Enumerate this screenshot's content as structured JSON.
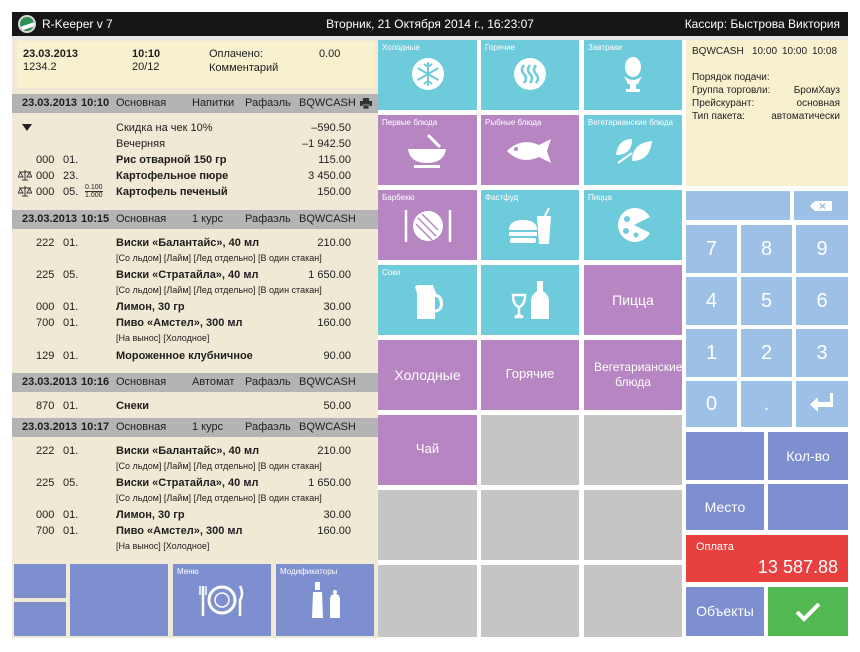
{
  "title_bar": {
    "app_name": "R-Keeper v 7",
    "datetime": "Вторник, 21 Октября 2014 г., 16:23:07",
    "cashier": "Кассир: Быстрова Виктория"
  },
  "order_header": {
    "date": "23.03.2013",
    "time": "10:10",
    "number": "1234.2",
    "table": "20/12",
    "paid_label": "Оплачено:",
    "paid_value": "0.00",
    "comment_label": "Комментарий"
  },
  "groups": [
    {
      "date": "23.03.2013",
      "time": "10:10",
      "type": "Основная",
      "course": "Напитки",
      "waiter": "Рафаэль",
      "station": "BQWCASH",
      "items": [
        {
          "code": "",
          "qty": "",
          "name": "Скидка на чек 10%",
          "price": "–590.50"
        },
        {
          "code": "",
          "qty": "",
          "name": "Вечерняя",
          "price": "–1 942.50"
        },
        {
          "code": "000",
          "qty": "01.",
          "name": "Рис отварной 150 гр",
          "price": "115.00"
        },
        {
          "code": "000",
          "qty": "23.",
          "name": "Картофельное пюре",
          "price": "3 450.00"
        },
        {
          "code": "000",
          "qty": "05.",
          "frac_num": "0.100",
          "frac_den": "1.000",
          "name": "Картофель печеный",
          "price": "150.00"
        }
      ]
    },
    {
      "date": "23.03.2013",
      "time": "10:15",
      "type": "Основная",
      "course": "1 курс",
      "waiter": "Рафаэль",
      "station": "BQWCASH",
      "items": [
        {
          "code": "222",
          "qty": "01.",
          "name": "Виски «Балантайс», 40 мл",
          "price": "210.00",
          "mods": "[Со льдом] [Лайм] [Лед отдельно] [В один стакан]"
        },
        {
          "code": "225",
          "qty": "05.",
          "name": "Виски «Стратайла», 40 мл",
          "price": "1 650.00",
          "mods": "[Со льдом] [Лайм] [Лед отдельно] [В один стакан]"
        },
        {
          "code": "000",
          "qty": "01.",
          "name": "Лимон, 30 гр",
          "price": "30.00"
        },
        {
          "code": "700",
          "qty": "01.",
          "name": "Пиво «Амстел», 300 мл",
          "price": "160.00",
          "mods": "[На вынос] [Холодное]"
        },
        {
          "code": "129",
          "qty": "01.",
          "name": "Мороженное клубничное",
          "price": "90.00"
        }
      ]
    },
    {
      "date": "23.03.2013",
      "time": "10:16",
      "type": "Основная",
      "course": "Автомат",
      "waiter": "Рафаэль",
      "station": "BQWCASH",
      "items": [
        {
          "code": "870",
          "qty": "01.",
          "name": "Снеки",
          "price": "50.00"
        }
      ]
    },
    {
      "date": "23.03.2013",
      "time": "10:17",
      "type": "Основная",
      "course": "1 курс",
      "waiter": "Рафаэль",
      "station": "BQWCASH",
      "items": [
        {
          "code": "222",
          "qty": "01.",
          "name": "Виски «Балантайс», 40 мл",
          "price": "210.00",
          "mods": "[Со льдом] [Лайм] [Лед отдельно] [В один стакан]"
        },
        {
          "code": "225",
          "qty": "05.",
          "name": "Виски «Стратайла», 40 мл",
          "price": "1 650.00",
          "mods": "[Со льдом] [Лайм] [Лед отдельно] [В один стакан]"
        },
        {
          "code": "000",
          "qty": "01.",
          "name": "Лимон, 30 гр",
          "price": "30.00"
        },
        {
          "code": "700",
          "qty": "01.",
          "name": "Пиво «Амстел», 300 мл",
          "price": "160.00",
          "mods": "[На вынос] [Холодное]"
        }
      ]
    }
  ],
  "bottom_buttons": {
    "menu": "Меню",
    "modifiers": "Модификаторы"
  },
  "categories": {
    "cold": "Холодные",
    "hot": "Горячие",
    "breakfast": "Завтраки",
    "first": "Первые блюда",
    "fish": "Рыбные блюда",
    "veg": "Вегетарианские блюда",
    "bbq": "Барбекю",
    "fastfood": "Фастфуд",
    "pizza": "Пицца",
    "juice": "Соки",
    "pizza_big": "Пицца",
    "cold_big": "Холодные",
    "hot_big": "Горячие",
    "veg_big": "Вегетарианские блюда",
    "tea": "Чай"
  },
  "cash_info": {
    "station": "BQWCASH",
    "t1": "10:00",
    "t2": "10:00",
    "t3": "10:08",
    "serve_order": "Порядок подачи:",
    "trade_group_label": "Группа торговли:",
    "trade_group_value": "БромХауз",
    "price_list_label": "Прейскурант:",
    "price_list_value": "основная",
    "packet_label": "Тип пакета:",
    "packet_value": "автоматически"
  },
  "keypad": {
    "keys": [
      "7",
      "8",
      "9",
      "4",
      "5",
      "6",
      "1",
      "2",
      "3",
      "0",
      "."
    ],
    "qty": "Кол-во",
    "place": "Место",
    "pay_label": "Оплата",
    "pay_amount": "13 587.88",
    "objects": "Объекты"
  }
}
